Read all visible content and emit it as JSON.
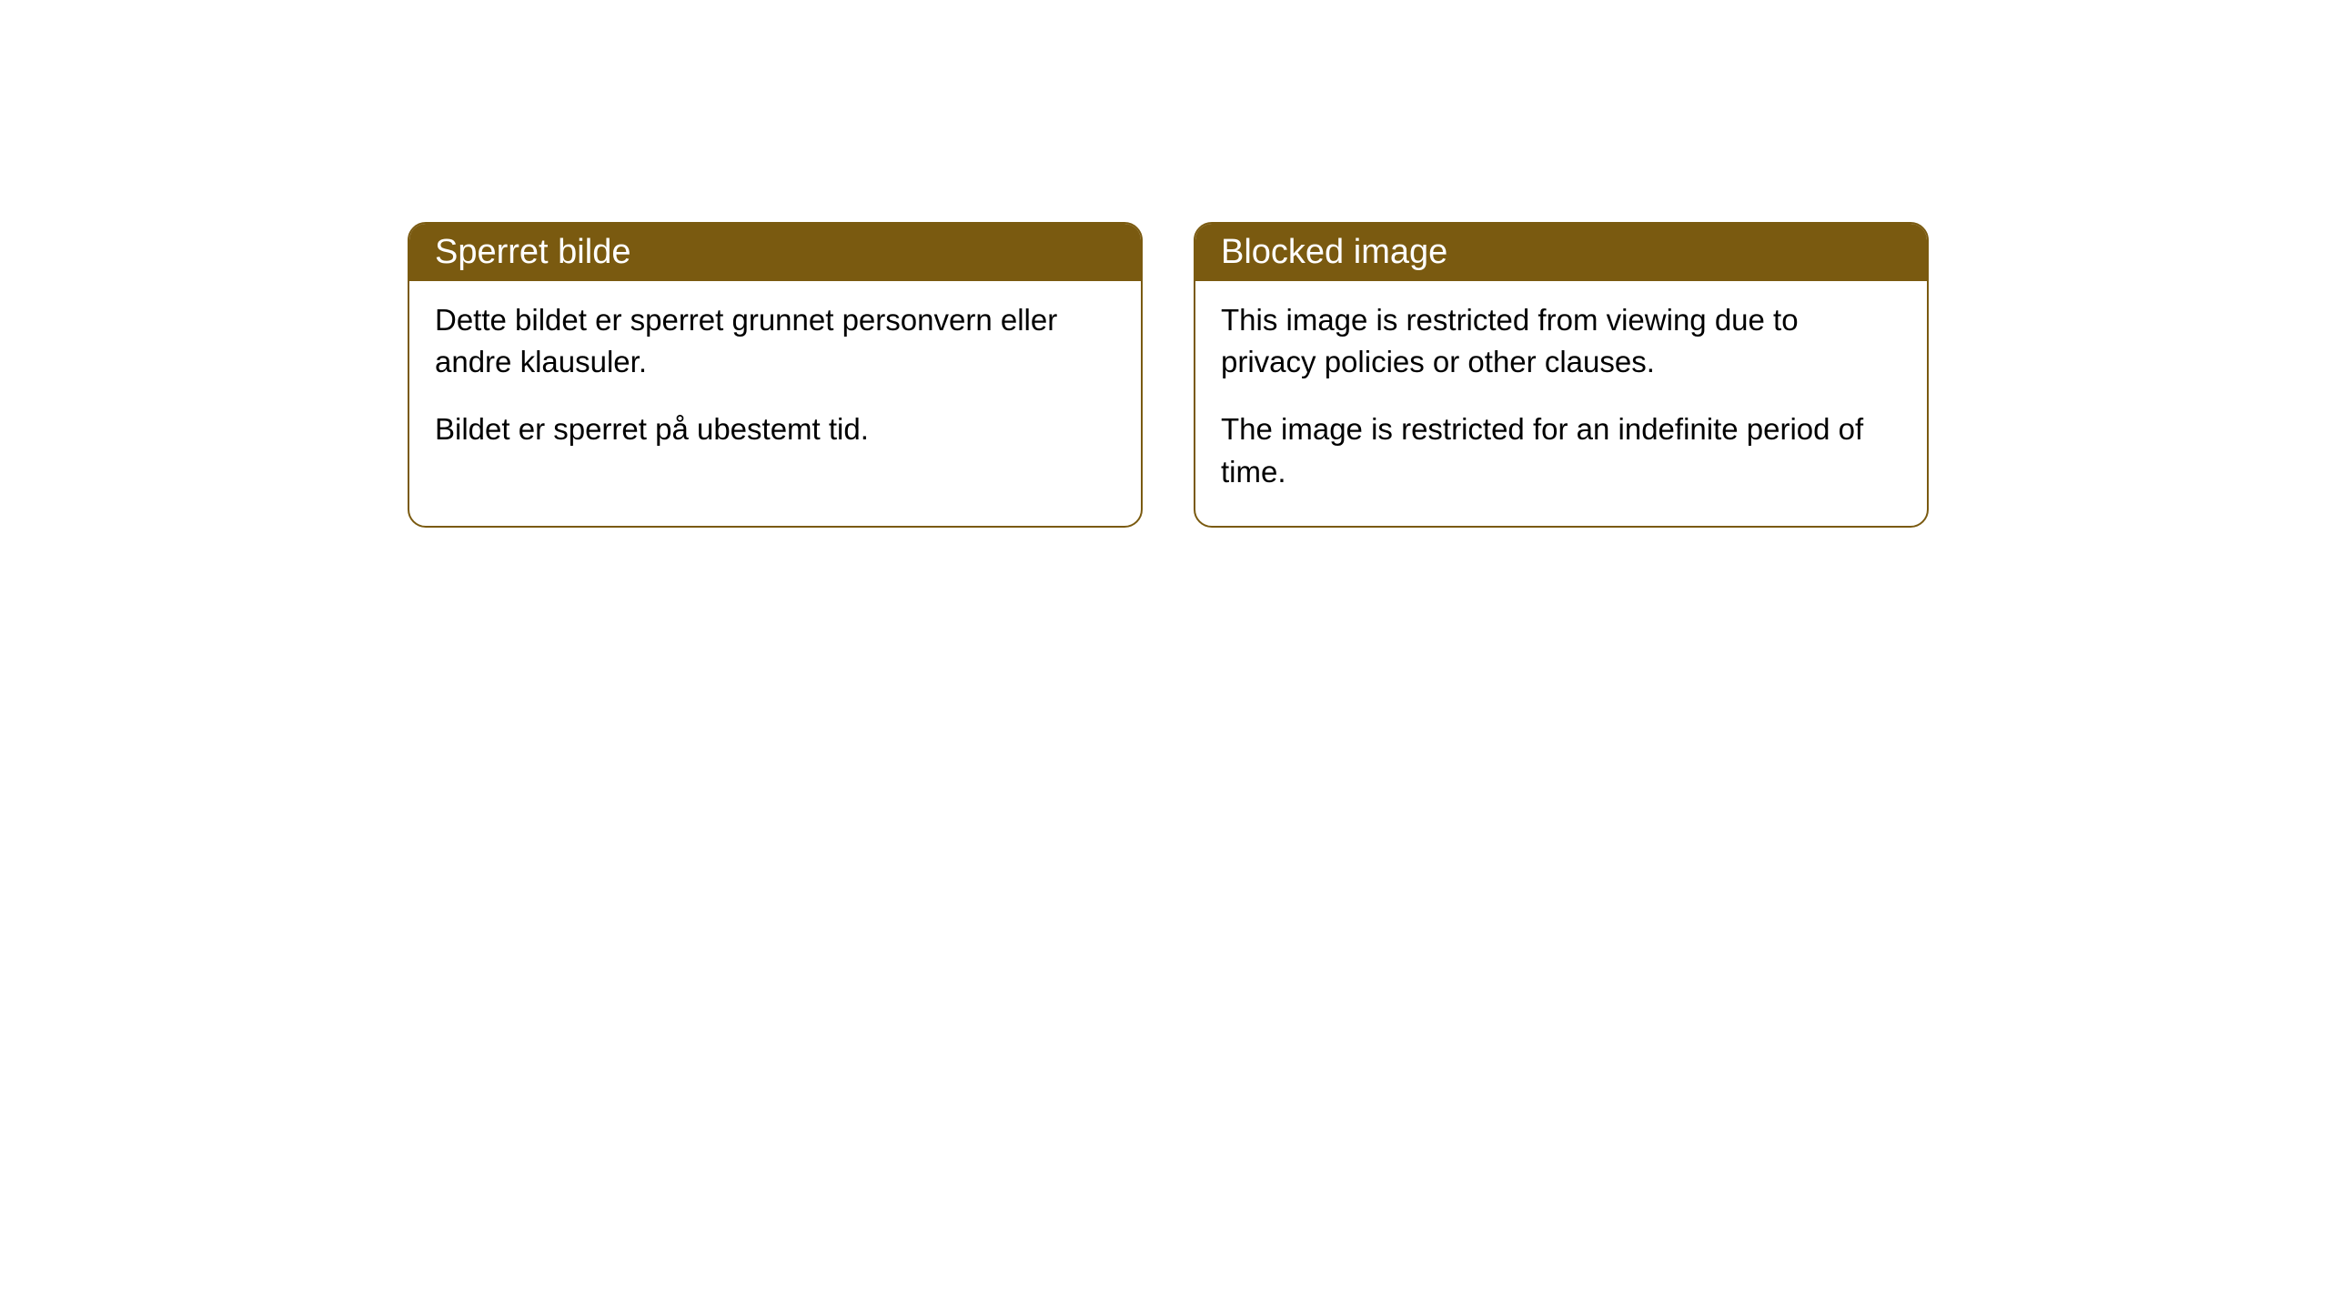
{
  "cards": [
    {
      "title": "Sperret bilde",
      "paragraph1": "Dette bildet er sperret grunnet personvern eller andre klausuler.",
      "paragraph2": "Bildet er sperret på ubestemt tid."
    },
    {
      "title": "Blocked image",
      "paragraph1": "This image is restricted from viewing due to privacy policies or other clauses.",
      "paragraph2": "The image is restricted for an indefinite period of time."
    }
  ],
  "style": {
    "header_bg_color": "#7a5a10",
    "header_text_color": "#ffffff",
    "border_color": "#7a5a10",
    "body_bg_color": "#ffffff",
    "body_text_color": "#000000",
    "border_radius": 20,
    "header_fontsize": 38,
    "body_fontsize": 33
  }
}
